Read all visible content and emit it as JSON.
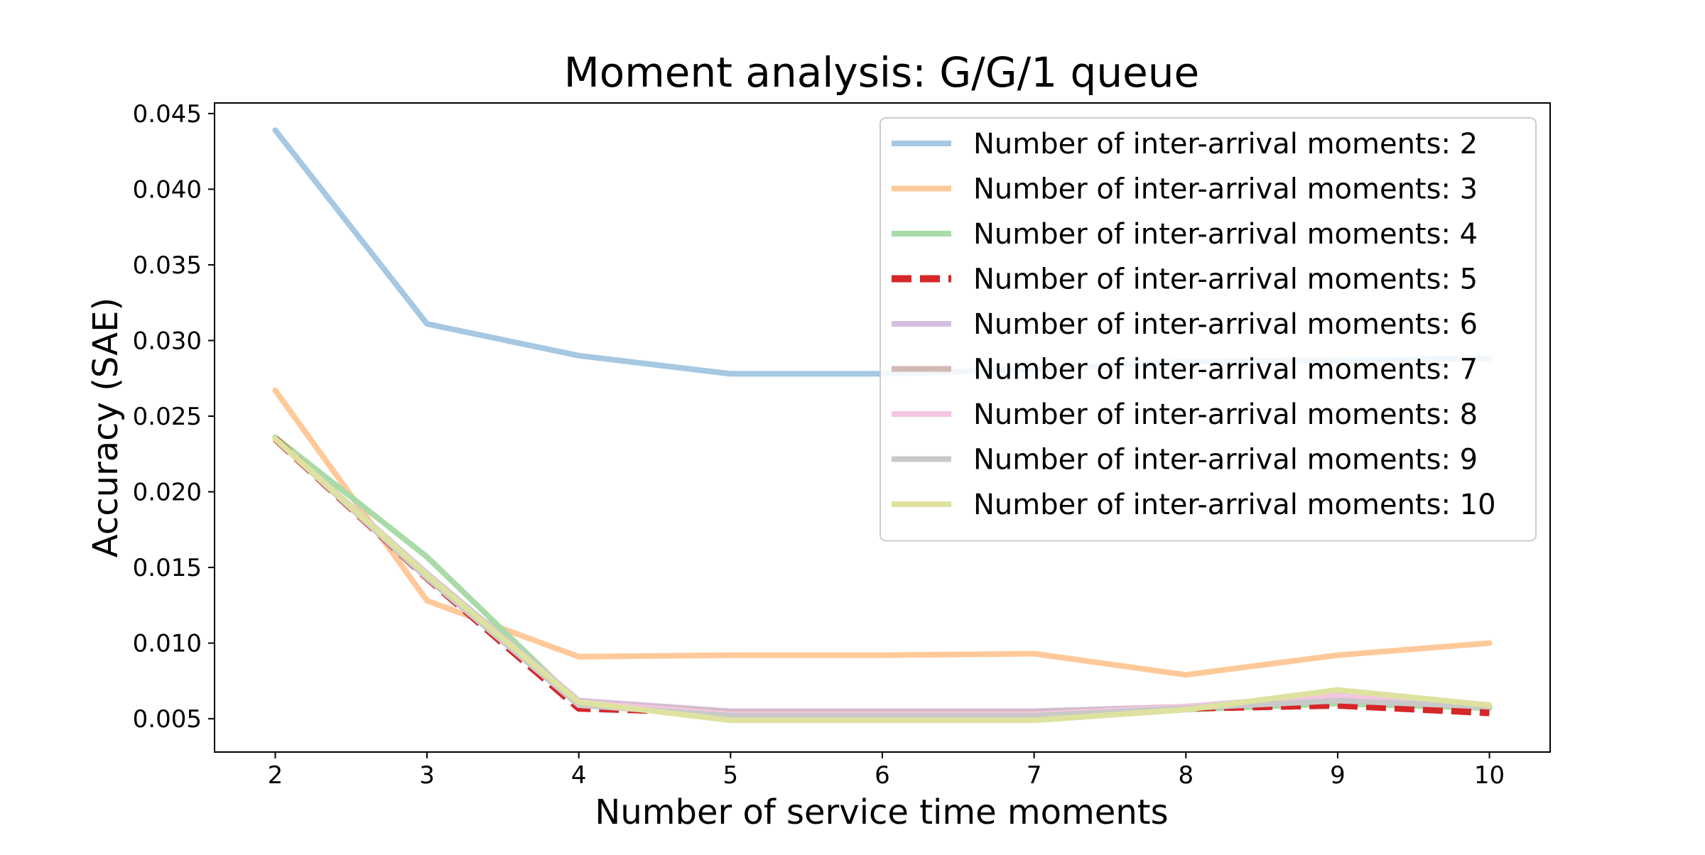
{
  "chart_data": {
    "type": "line",
    "title": "Moment analysis: G/G/1 queue",
    "xlabel": "Number of service time moments",
    "ylabel": "Accuracy (SAE)",
    "x": [
      2,
      3,
      4,
      5,
      6,
      7,
      8,
      9,
      10
    ],
    "xlim": [
      1.6,
      10.4
    ],
    "ylim": [
      0.0028,
      0.0457
    ],
    "xticks": [
      2,
      3,
      4,
      5,
      6,
      7,
      8,
      9,
      10
    ],
    "yticks": [
      "0.005",
      "0.010",
      "0.015",
      "0.020",
      "0.025",
      "0.030",
      "0.035",
      "0.040",
      "0.045"
    ],
    "grid": false,
    "legend_position": "top-right",
    "series": [
      {
        "name": "Number of inter-arrival moments: 2",
        "color": "#a6c8e2",
        "dashed": false,
        "values": [
          0.0439,
          0.0311,
          0.029,
          0.0278,
          0.0278,
          0.0281,
          0.0286,
          0.0287,
          0.0288
        ]
      },
      {
        "name": "Number of inter-arrival moments: 3",
        "color": "#ffc999",
        "dashed": false,
        "values": [
          0.0267,
          0.0128,
          0.0091,
          0.0092,
          0.0092,
          0.0093,
          0.0079,
          0.0092,
          0.01
        ]
      },
      {
        "name": "Number of inter-arrival moments: 4",
        "color": "#a9dba8",
        "dashed": false,
        "values": [
          0.0236,
          0.0157,
          0.006,
          0.0052,
          0.0052,
          0.0051,
          0.0056,
          0.006,
          0.0057
        ]
      },
      {
        "name": "Number of inter-arrival moments: 5",
        "color": "#d62728",
        "dashed": true,
        "values": [
          0.0235,
          0.0143,
          0.0057,
          0.0054,
          0.0054,
          0.0053,
          0.0057,
          0.0059,
          0.0054
        ]
      },
      {
        "name": "Number of inter-arrival moments: 6",
        "color": "#d4bfe0",
        "dashed": false,
        "values": [
          0.0235,
          0.0146,
          0.0062,
          0.0055,
          0.0055,
          0.0055,
          0.0058,
          0.0066,
          0.0059
        ]
      },
      {
        "name": "Number of inter-arrival moments: 7",
        "color": "#d2b8b3",
        "dashed": false,
        "values": [
          0.0235,
          0.0143,
          0.0061,
          0.0054,
          0.0054,
          0.0054,
          0.0058,
          0.0064,
          0.0059
        ]
      },
      {
        "name": "Number of inter-arrival moments: 8",
        "color": "#f5c5e4",
        "dashed": false,
        "values": [
          0.0235,
          0.0144,
          0.0061,
          0.0053,
          0.0053,
          0.0053,
          0.0058,
          0.0065,
          0.0058
        ]
      },
      {
        "name": "Number of inter-arrival moments: 9",
        "color": "#c9c9c9",
        "dashed": false,
        "values": [
          0.0235,
          0.0143,
          0.0059,
          0.0052,
          0.0052,
          0.0052,
          0.0057,
          0.0062,
          0.0058
        ]
      },
      {
        "name": "Number of inter-arrival moments: 10",
        "color": "#dee2a0",
        "dashed": false,
        "values": [
          0.0235,
          0.0145,
          0.0061,
          0.0049,
          0.0049,
          0.0049,
          0.0056,
          0.0069,
          0.0059
        ]
      }
    ]
  }
}
